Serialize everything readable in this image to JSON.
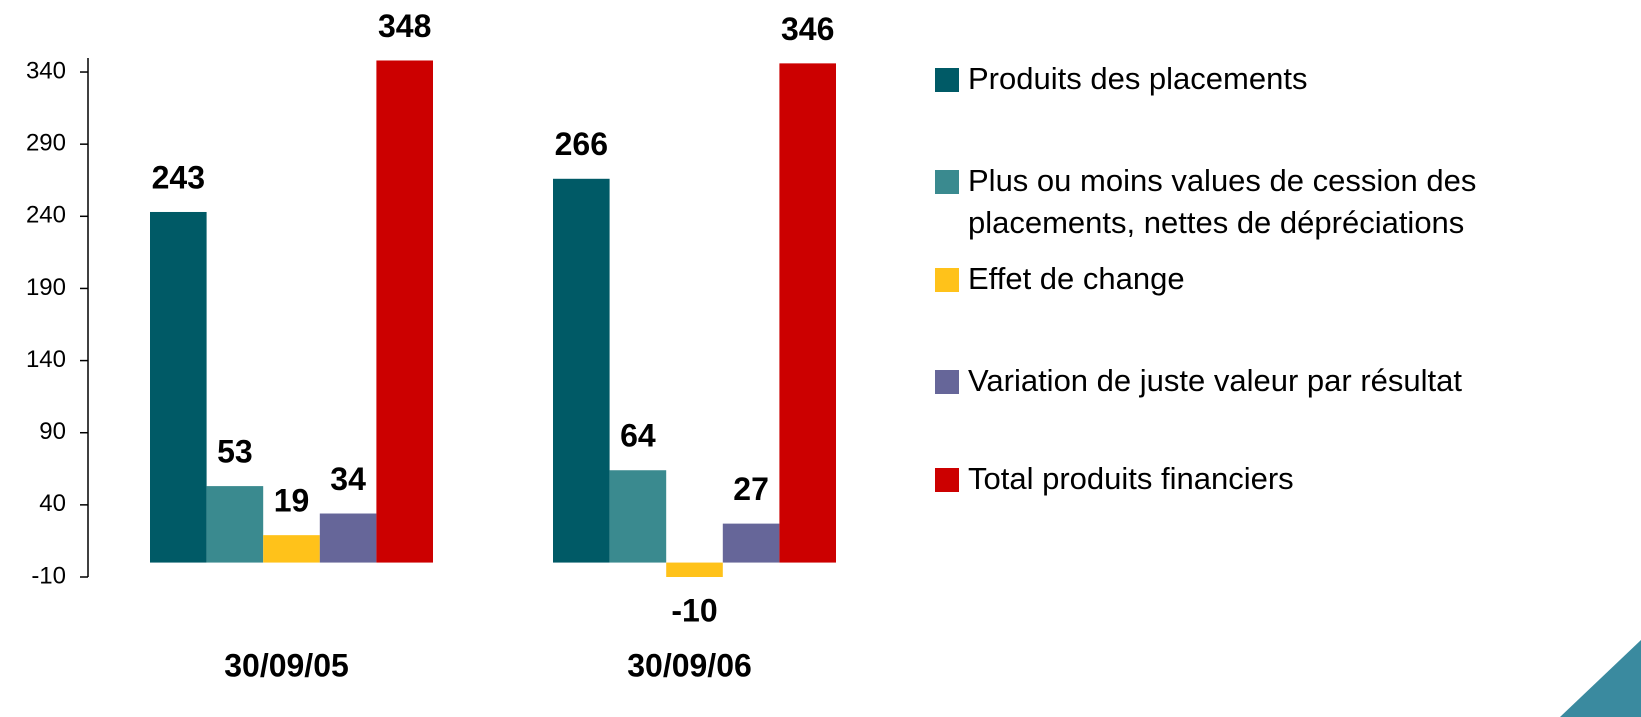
{
  "chart_data": {
    "type": "bar",
    "categories": [
      "30/09/05",
      "30/09/06"
    ],
    "series": [
      {
        "name": "Produits des placements",
        "color": "#005a66",
        "values": [
          243,
          266
        ]
      },
      {
        "name": "Plus ou moins values de cession des placements, nettes de dépréciations",
        "color": "#3a8a8f",
        "values": [
          53,
          64
        ]
      },
      {
        "name": "Effet de change",
        "color": "#ffc21a",
        "values": [
          19,
          -10
        ]
      },
      {
        "name": "Variation de juste valeur par résultat",
        "color": "#666699",
        "values": [
          34,
          27
        ]
      },
      {
        "name": "Total produits financiers",
        "color": "#cc0000",
        "values": [
          348,
          346
        ]
      }
    ],
    "ylim": [
      -10,
      350
    ],
    "yticks": [
      -10,
      40,
      90,
      140,
      190,
      240,
      290,
      340
    ],
    "legend": "right"
  }
}
